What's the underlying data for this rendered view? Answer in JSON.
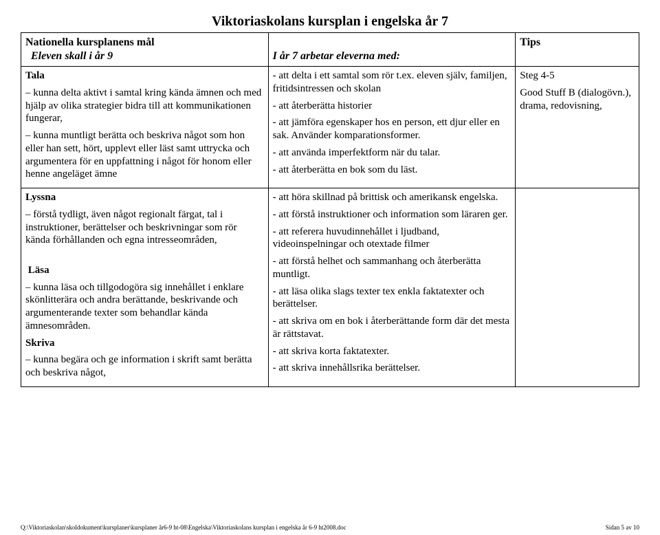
{
  "title": "Viktoriaskolans kursplan i engelska år 7",
  "header": {
    "col1_line1": "Nationella kursplanens mål",
    "col1_line2": "Eleven skall i år 9",
    "col2": "I år 7 arbetar eleverna med:",
    "col3": "Tips"
  },
  "row1": {
    "c1_h": "Tala",
    "c1_p1": "– kunna delta aktivt i samtal kring kända ämnen och med hjälp av olika strategier bidra till att kommunikationen fungerar,",
    "c1_p2": "– kunna muntligt berätta och beskriva något som hon eller han sett, hört, upplevt eller läst samt uttrycka och argumentera för en uppfattning i något för honom eller henne angeläget ämne",
    "c2_p1": "- att delta i ett samtal som rör t.ex. eleven själv, familjen, fritidsintressen och skolan",
    "c2_p2": "- att återberätta historier",
    "c2_p3": "- att jämföra egenskaper hos en person, ett djur eller en sak. Använder komparationsformer.",
    "c2_p4": "- att använda imperfektform när du talar.",
    "c2_p5": "- att återberätta en bok som du läst.",
    "c3_p1": "Steg 4-5",
    "c3_p2": "Good Stuff B (dialogövn.), drama, redovisning,"
  },
  "row2": {
    "c1_h1": "Lyssna",
    "c1_p1": "– förstå tydligt, även något regionalt färgat, tal i instruktioner, berättelser och beskrivningar som rör kända förhållanden och egna intresseområden,",
    "c1_h2": "Läsa",
    "c1_p2": "– kunna läsa och tillgodogöra sig innehållet i enklare skönlitterära och andra berättande, beskrivande och argumenterande texter som behandlar kända ämnesområden.",
    "c1_h3": "Skriva",
    "c1_p3": "– kunna begära och ge information i skrift samt berätta och beskriva något,",
    "c2_p1": "- att höra skillnad på brittisk och amerikansk engelska.",
    "c2_p2": "- att förstå instruktioner och information som läraren ger.",
    "c2_p3": "- att referera huvudinnehållet i ljudband, videoinspelningar och otextade filmer",
    "c2_p4": "- att förstå helhet och sammanhang och återberätta muntligt.",
    "c2_p5": "- att läsa olika slags texter tex enkla faktatexter och berättelser.",
    "c2_p6": "- att skriva om en bok i återberättande form där det mesta är rättstavat.",
    "c2_p7": "- att skriva korta faktatexter.",
    "c2_p8": "- att skriva innehållsrika berättelser."
  },
  "footer": {
    "left": "Q:\\Viktoriaskolan\\skoldokument\\kursplaner\\kursplaner år6-9  ht-08\\Engelska\\Viktoriaskolans kursplan i engelska år 6-9 ht2008.doc",
    "right": "Sidan 5 av 10"
  }
}
